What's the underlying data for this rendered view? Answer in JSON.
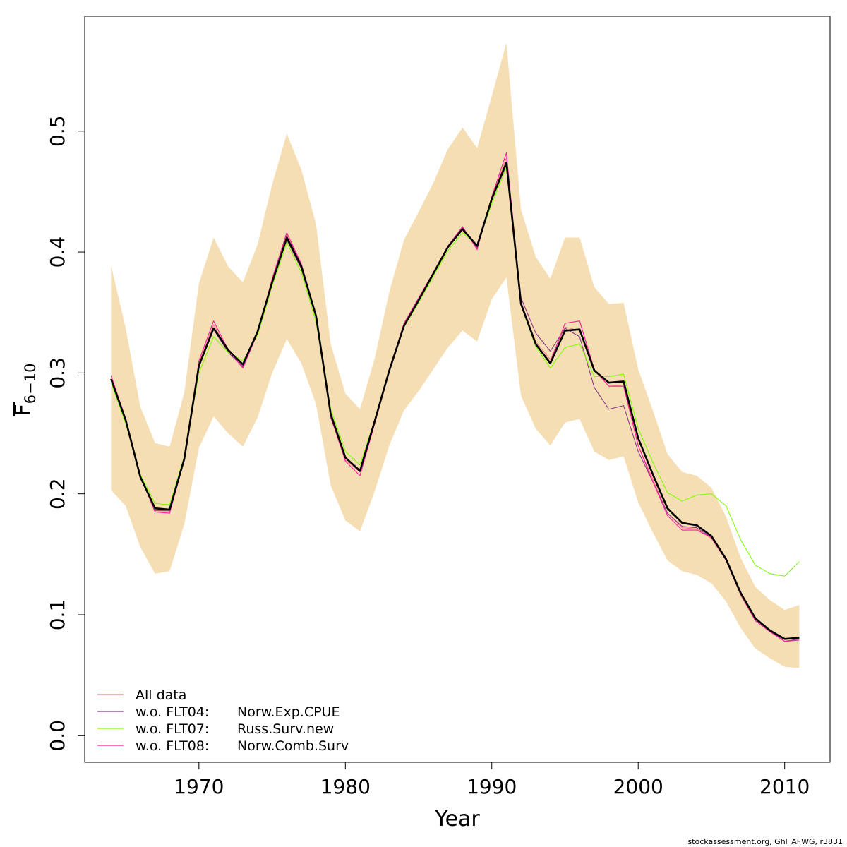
{
  "chart_data": {
    "type": "line",
    "xlabel": "Year",
    "ylabel": "F",
    "ylabel_sub": "6−10",
    "xlim": [
      1962.2,
      2013.1
    ],
    "ylim": [
      -0.022,
      0.595
    ],
    "x_ticks": [
      1970,
      1980,
      1990,
      2000,
      2010
    ],
    "y_ticks": [
      0.0,
      0.1,
      0.2,
      0.3,
      0.4,
      0.5
    ],
    "x_tick_labels": [
      "1970",
      "1980",
      "1990",
      "2000",
      "2010"
    ],
    "y_tick_labels": [
      "0.0",
      "0.1",
      "0.2",
      "0.3",
      "0.4",
      "0.5"
    ],
    "years": [
      1964,
      1965,
      1966,
      1967,
      1968,
      1969,
      1970,
      1971,
      1972,
      1973,
      1974,
      1975,
      1976,
      1977,
      1978,
      1979,
      1980,
      1981,
      1982,
      1983,
      1984,
      1985,
      1986,
      1987,
      1988,
      1989,
      1990,
      1991,
      1992,
      1993,
      1994,
      1995,
      1996,
      1997,
      1998,
      1999,
      2000,
      2001,
      2002,
      2003,
      2004,
      2005,
      2006,
      2007,
      2008,
      2009,
      2010,
      2011
    ],
    "ci_upper": [
      0.389,
      0.337,
      0.272,
      0.242,
      0.239,
      0.284,
      0.374,
      0.412,
      0.388,
      0.375,
      0.406,
      0.456,
      0.498,
      0.468,
      0.423,
      0.324,
      0.283,
      0.27,
      0.312,
      0.367,
      0.41,
      0.433,
      0.457,
      0.485,
      0.503,
      0.486,
      0.529,
      0.573,
      0.435,
      0.396,
      0.378,
      0.412,
      0.412,
      0.371,
      0.357,
      0.358,
      0.303,
      0.269,
      0.233,
      0.218,
      0.215,
      0.205,
      0.181,
      0.147,
      0.123,
      0.112,
      0.104,
      0.108
    ],
    "ci_lower": [
      0.203,
      0.19,
      0.156,
      0.134,
      0.136,
      0.175,
      0.238,
      0.264,
      0.25,
      0.239,
      0.263,
      0.3,
      0.328,
      0.308,
      0.274,
      0.207,
      0.178,
      0.169,
      0.202,
      0.24,
      0.269,
      0.285,
      0.303,
      0.321,
      0.335,
      0.326,
      0.361,
      0.379,
      0.281,
      0.254,
      0.24,
      0.259,
      0.262,
      0.235,
      0.228,
      0.231,
      0.193,
      0.168,
      0.145,
      0.136,
      0.133,
      0.126,
      0.111,
      0.089,
      0.072,
      0.064,
      0.057,
      0.056
    ],
    "fill_color": "#f5deb3",
    "series": [
      {
        "name": "All data",
        "color": "#f08080",
        "values": [
          0.297,
          0.262,
          0.215,
          0.187,
          0.186,
          0.228,
          0.308,
          0.34,
          0.318,
          0.305,
          0.334,
          0.376,
          0.414,
          0.39,
          0.348,
          0.264,
          0.228,
          0.218,
          0.258,
          0.301,
          0.339,
          0.361,
          0.383,
          0.405,
          0.42,
          0.404,
          0.445,
          0.478,
          0.358,
          0.326,
          0.311,
          0.338,
          0.335,
          0.302,
          0.289,
          0.29,
          0.24,
          0.212,
          0.184,
          0.172,
          0.171,
          0.163,
          0.145,
          0.116,
          0.095,
          0.086,
          0.078,
          0.08
        ]
      },
      {
        "name": "w.o. FLT04:      Norw.Exp.CPUE",
        "color": "#8b3a8b",
        "values": [
          0.295,
          0.26,
          0.214,
          0.186,
          0.186,
          0.228,
          0.305,
          0.336,
          0.317,
          0.305,
          0.333,
          0.376,
          0.41,
          0.386,
          0.346,
          0.263,
          0.23,
          0.218,
          0.259,
          0.302,
          0.339,
          0.361,
          0.383,
          0.404,
          0.42,
          0.403,
          0.443,
          0.472,
          0.362,
          0.333,
          0.318,
          0.337,
          0.33,
          0.288,
          0.27,
          0.273,
          0.235,
          0.21,
          0.184,
          0.173,
          0.172,
          0.164,
          0.145,
          0.117,
          0.096,
          0.087,
          0.078,
          0.08
        ]
      },
      {
        "name": "w.o. FLT07:      Russ.Surv.new",
        "color": "#7fff00",
        "values": [
          0.292,
          0.258,
          0.216,
          0.192,
          0.191,
          0.231,
          0.3,
          0.33,
          0.317,
          0.31,
          0.331,
          0.372,
          0.408,
          0.383,
          0.342,
          0.27,
          0.235,
          0.224,
          0.261,
          0.302,
          0.338,
          0.358,
          0.38,
          0.401,
          0.416,
          0.406,
          0.44,
          0.47,
          0.356,
          0.322,
          0.304,
          0.321,
          0.324,
          0.297,
          0.297,
          0.299,
          0.254,
          0.226,
          0.201,
          0.194,
          0.199,
          0.2,
          0.19,
          0.162,
          0.141,
          0.134,
          0.132,
          0.144
        ]
      },
      {
        "name": "w.o. FLT08:      Norw.Comb.Surv",
        "color": "#ff1aa8",
        "values": [
          0.298,
          0.262,
          0.215,
          0.185,
          0.184,
          0.228,
          0.31,
          0.343,
          0.319,
          0.304,
          0.333,
          0.378,
          0.416,
          0.39,
          0.347,
          0.264,
          0.227,
          0.215,
          0.258,
          0.302,
          0.341,
          0.362,
          0.383,
          0.405,
          0.421,
          0.402,
          0.446,
          0.482,
          0.359,
          0.324,
          0.309,
          0.341,
          0.343,
          0.303,
          0.289,
          0.289,
          0.24,
          0.21,
          0.182,
          0.17,
          0.17,
          0.164,
          0.145,
          0.117,
          0.095,
          0.086,
          0.078,
          0.079
        ]
      },
      {
        "name": "",
        "color": "#000000",
        "values": [
          0.295,
          0.261,
          0.214,
          0.188,
          0.187,
          0.229,
          0.306,
          0.337,
          0.319,
          0.307,
          0.334,
          0.375,
          0.412,
          0.388,
          0.347,
          0.266,
          0.23,
          0.219,
          0.26,
          0.302,
          0.339,
          0.36,
          0.382,
          0.404,
          0.419,
          0.405,
          0.444,
          0.474,
          0.357,
          0.324,
          0.308,
          0.335,
          0.336,
          0.302,
          0.292,
          0.293,
          0.246,
          0.216,
          0.188,
          0.176,
          0.174,
          0.165,
          0.146,
          0.118,
          0.097,
          0.087,
          0.08,
          0.081
        ]
      }
    ],
    "legend": {
      "placement": "bottom-left",
      "items": [
        {
          "prefix": "All data",
          "suffix": ""
        },
        {
          "prefix": "w.o. FLT04:",
          "suffix": "Norw.Exp.CPUE"
        },
        {
          "prefix": "w.o. FLT07:",
          "suffix": "Russ.Surv.new"
        },
        {
          "prefix": "w.o. FLT08:",
          "suffix": "Norw.Comb.Surv"
        }
      ]
    },
    "grid": false
  },
  "credit": "stockassessment.org, Ghl_AFWG, r3831"
}
